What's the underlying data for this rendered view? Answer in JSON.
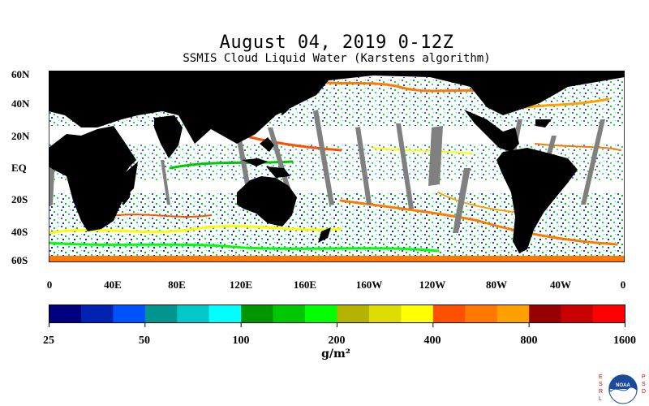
{
  "title": "August 04, 2019 0-12Z",
  "subtitle": "SSMIS Cloud Liquid Water (Karstens algorithm)",
  "map": {
    "lat_labels": [
      "60N",
      "40N",
      "20N",
      "EQ",
      "20S",
      "40S",
      "60S"
    ],
    "lon_labels": [
      "0",
      "40E",
      "80E",
      "120E",
      "160E",
      "160W",
      "120W",
      "80W",
      "40W",
      "0"
    ],
    "land_color": "#000000",
    "no_data_color": "#808080",
    "background_color": "#ffffff"
  },
  "colorbar": {
    "colors": [
      "#00007f",
      "#0022b0",
      "#0052ff",
      "#00968f",
      "#00c8c8",
      "#00ffff",
      "#009600",
      "#00c800",
      "#00ff00",
      "#b4b400",
      "#dcdc00",
      "#ffff00",
      "#ff5000",
      "#ff7800",
      "#ffa000",
      "#960000",
      "#c80000",
      "#ff0000"
    ],
    "tick_labels": [
      "25",
      "50",
      "100",
      "200",
      "400",
      "800",
      "1600"
    ],
    "unit": "g/m²"
  },
  "logo": {
    "left_letters": "ESRL",
    "right_letters": "PSD",
    "emblem": "noaa-logo"
  }
}
